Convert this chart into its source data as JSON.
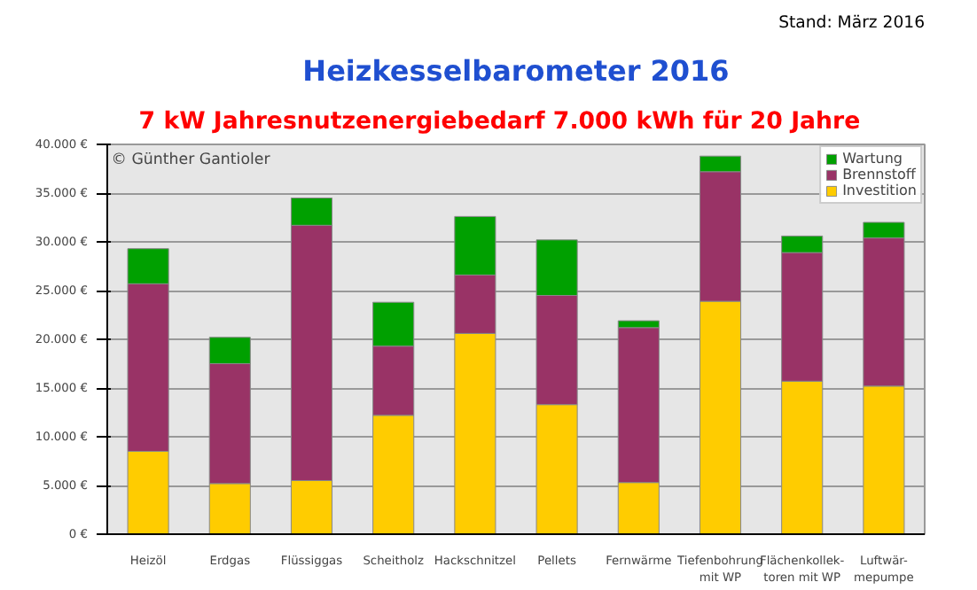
{
  "chart_data": {
    "type": "bar",
    "stacked": true,
    "title": "Heizkesselbarometer 2016",
    "subtitle": "7 kW     Jahresnutzenergiebedarf 7.000 kWh für 20 Jahre",
    "annotations": [
      "Stand: März 2016",
      "© Günther Gantioler"
    ],
    "categories": [
      "Heizöl",
      "Erdgas",
      "Flüssiggas",
      "Scheitholz",
      "Hackschnitzel",
      "Pellets",
      "Fernwärme",
      "Tiefenbohrung\nmit WP",
      "Flächenkollek-\ntoren mit WP",
      "Luftwär-\nmepumpe"
    ],
    "series": [
      {
        "name": "Investition",
        "color": "#ffcc00",
        "values": [
          8500,
          5200,
          5500,
          12200,
          20600,
          13300,
          5300,
          23900,
          15700,
          15200
        ]
      },
      {
        "name": "Brennstoff",
        "color": "#993366",
        "values": [
          17200,
          12300,
          26200,
          7100,
          6000,
          11200,
          15900,
          13300,
          13200,
          15200
        ]
      },
      {
        "name": "Wartung",
        "color": "#00a000",
        "values": [
          3600,
          2700,
          2800,
          4500,
          6000,
          5700,
          700,
          1600,
          1700,
          1600
        ]
      }
    ],
    "ylim": [
      0,
      40000
    ],
    "yticks": [
      {
        "value": 0,
        "label": "0 €"
      },
      {
        "value": 5000,
        "label": "5.000 €"
      },
      {
        "value": 10000,
        "label": "10.000 €"
      },
      {
        "value": 15000,
        "label": "15.000 €"
      },
      {
        "value": 20000,
        "label": "20.000 €"
      },
      {
        "value": 25000,
        "label": "25.000 €"
      },
      {
        "value": 30000,
        "label": "30.000 €"
      },
      {
        "value": 35000,
        "label": "35.000 €"
      },
      {
        "value": 40000,
        "label": "40.000 €"
      }
    ],
    "grid": "y",
    "legend": "top right"
  }
}
